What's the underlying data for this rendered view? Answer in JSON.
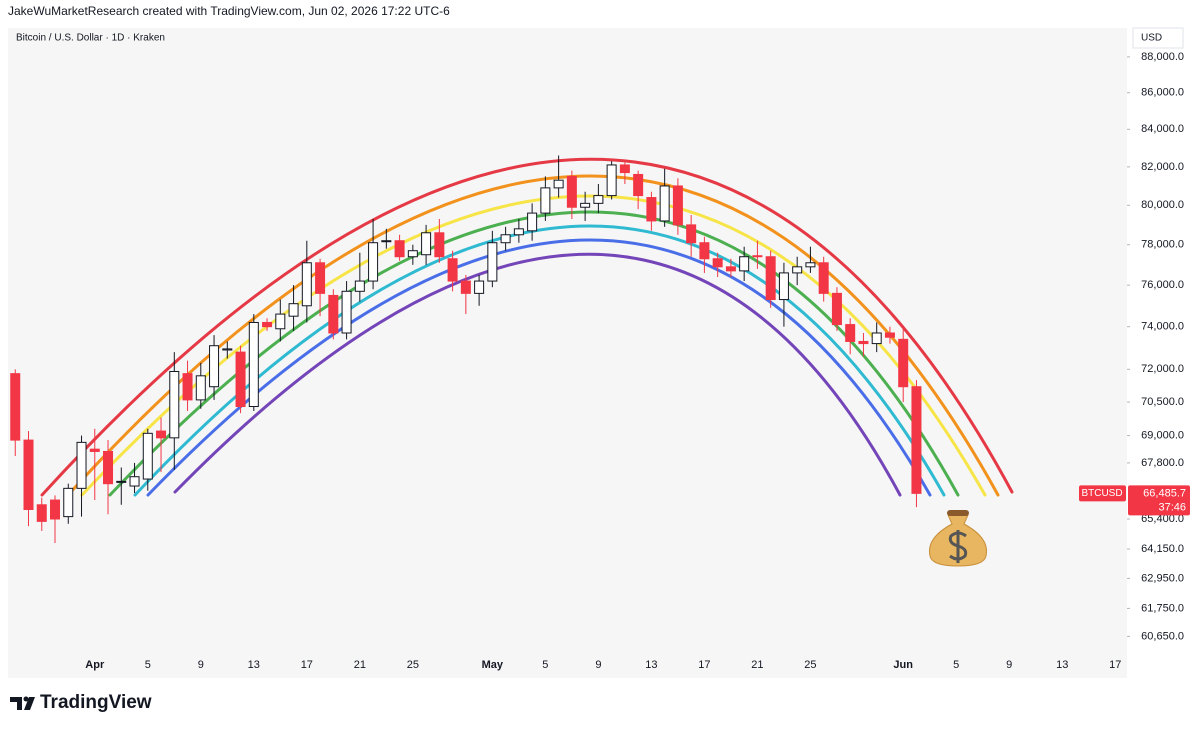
{
  "header": "JakeWuMarketResearch created with TradingView.com, Jun 02, 2026 17:22 UTC-6",
  "brand": "TradingView",
  "chart_data": {
    "type": "candlestick",
    "title": "Bitcoin / U.S. Dollar · 1D · Kraken",
    "currency": "USD",
    "symbol": "BTCUSD",
    "last_price": {
      "value": 66485.7,
      "label": "66,485.7"
    },
    "countdown": "37:46",
    "log_scale": true,
    "grid": false,
    "up_color": "#ffffff",
    "down_color": "#f23645",
    "x": [
      "03-26",
      "03-27",
      "03-28",
      "03-29",
      "03-30",
      "03-31",
      "04-01",
      "04-02",
      "04-03",
      "04-04",
      "04-05",
      "04-06",
      "04-07",
      "04-08",
      "04-09",
      "04-10",
      "04-11",
      "04-12",
      "04-13",
      "04-14",
      "04-15",
      "04-16",
      "04-17",
      "04-18",
      "04-19",
      "04-20",
      "04-21",
      "04-22",
      "04-23",
      "04-24",
      "04-25",
      "04-26",
      "04-27",
      "04-28",
      "04-29",
      "04-30",
      "05-01",
      "05-02",
      "05-03",
      "05-04",
      "05-05",
      "05-06",
      "05-07",
      "05-08",
      "05-09",
      "05-10",
      "05-11",
      "05-12",
      "05-13",
      "05-14",
      "05-15",
      "05-16",
      "05-17",
      "05-18",
      "05-19",
      "05-20",
      "05-21",
      "05-22",
      "05-23",
      "05-24",
      "05-25",
      "05-26",
      "05-27",
      "05-28",
      "05-29",
      "05-30",
      "05-31",
      "06-01",
      "06-02"
    ],
    "open": [
      71800,
      68800,
      66000,
      66200,
      65500,
      66700,
      68400,
      68300,
      67000,
      66800,
      67100,
      69200,
      68900,
      71800,
      70600,
      71200,
      72900,
      72800,
      70300,
      74200,
      73900,
      74500,
      75000,
      77100,
      75500,
      73700,
      75700,
      76200,
      78200,
      78200,
      77400,
      77500,
      78600,
      77300,
      76200,
      75600,
      76200,
      78100,
      78500,
      78700,
      79600,
      80900,
      81500,
      79900,
      80100,
      80500,
      82100,
      81600,
      80400,
      79200,
      81000,
      79000,
      78100,
      77300,
      76900,
      76700,
      77450,
      77400,
      75300,
      76600,
      76900,
      77100,
      75600,
      74100,
      73300,
      73200,
      73700,
      73400,
      71200
    ],
    "high": [
      72000,
      69200,
      66300,
      66400,
      66900,
      69000,
      69300,
      68800,
      67600,
      67800,
      69300,
      69800,
      72800,
      72400,
      72300,
      73600,
      73300,
      73100,
      74600,
      74400,
      75300,
      76000,
      78200,
      77300,
      75800,
      76200,
      77600,
      79300,
      78800,
      78500,
      78000,
      79000,
      79300,
      77700,
      76500,
      76500,
      78700,
      78900,
      79300,
      80100,
      81500,
      82600,
      81800,
      80700,
      81100,
      82300,
      82300,
      81800,
      80700,
      81900,
      81400,
      79500,
      78400,
      77600,
      77300,
      77900,
      78200,
      77700,
      77100,
      77400,
      77900,
      77400,
      75900,
      74400,
      73700,
      74200,
      74000,
      73900,
      71500
    ],
    "low": [
      68100,
      65100,
      64900,
      64400,
      65200,
      65500,
      66200,
      65600,
      66000,
      66500,
      66600,
      67400,
      67500,
      70100,
      70200,
      70600,
      72500,
      70000,
      70100,
      73800,
      73300,
      73800,
      74200,
      74500,
      73400,
      73400,
      75200,
      75800,
      77800,
      77200,
      77000,
      77000,
      77100,
      75700,
      74600,
      75000,
      75900,
      77700,
      78100,
      78200,
      79200,
      80400,
      79300,
      79200,
      79600,
      80300,
      81100,
      79800,
      78700,
      78900,
      78500,
      77400,
      76600,
      76400,
      76400,
      76200,
      76800,
      74900,
      74000,
      76000,
      76600,
      75200,
      73800,
      72700,
      72600,
      72800,
      73200,
      70500,
      65900
    ],
    "close": [
      68800,
      65800,
      65300,
      65400,
      66700,
      68700,
      68300,
      66900,
      67000,
      67200,
      69100,
      68900,
      71900,
      70600,
      71700,
      73100,
      72950,
      70300,
      74200,
      74000,
      74600,
      75100,
      77100,
      75600,
      73700,
      75700,
      76200,
      78100,
      78200,
      77400,
      77700,
      78600,
      77400,
      76200,
      75600,
      76200,
      78100,
      78500,
      78800,
      79600,
      80900,
      81300,
      79900,
      80100,
      80500,
      82100,
      81700,
      80500,
      79200,
      81000,
      79000,
      78100,
      77300,
      76900,
      76700,
      77400,
      77400,
      75300,
      76600,
      76900,
      77100,
      75600,
      74100,
      73300,
      73200,
      73700,
      73500,
      71200,
      66485.7
    ],
    "xlim": [
      "03-25",
      "06-18"
    ],
    "xticks": [
      {
        "value": "04-01",
        "label": "Apr"
      },
      {
        "value": "04-05",
        "label": "5"
      },
      {
        "value": "04-09",
        "label": "9"
      },
      {
        "value": "04-13",
        "label": "13"
      },
      {
        "value": "04-17",
        "label": "17"
      },
      {
        "value": "04-21",
        "label": "21"
      },
      {
        "value": "04-25",
        "label": "25"
      },
      {
        "value": "05-01",
        "label": "May"
      },
      {
        "value": "05-05",
        "label": "5"
      },
      {
        "value": "05-09",
        "label": "9"
      },
      {
        "value": "05-13",
        "label": "13"
      },
      {
        "value": "05-17",
        "label": "17"
      },
      {
        "value": "05-21",
        "label": "21"
      },
      {
        "value": "05-25",
        "label": "25"
      },
      {
        "value": "06-01",
        "label": "Jun"
      },
      {
        "value": "06-05",
        "label": "5"
      },
      {
        "value": "06-09",
        "label": "9"
      },
      {
        "value": "06-13",
        "label": "13"
      },
      {
        "value": "06-17",
        "label": "17"
      }
    ],
    "ylim": [
      59050,
      89650
    ],
    "yticks": [
      {
        "value": 88000,
        "label": "88,000.0"
      },
      {
        "value": 86000,
        "label": "86,000.0"
      },
      {
        "value": 84000,
        "label": "84,000.0"
      },
      {
        "value": 82000,
        "label": "82,000.0"
      },
      {
        "value": 80000,
        "label": "80,000.0"
      },
      {
        "value": 78000,
        "label": "78,000.0"
      },
      {
        "value": 76000,
        "label": "76,000.0"
      },
      {
        "value": 74000,
        "label": "74,000.0"
      },
      {
        "value": 72000,
        "label": "72,000.0"
      },
      {
        "value": 70500,
        "label": "70,500.0"
      },
      {
        "value": 69000,
        "label": "69,000.0"
      },
      {
        "value": 67800,
        "label": "67,800.0"
      },
      {
        "value": 65400,
        "label": "65,400.0"
      },
      {
        "value": 64150,
        "label": "64,150.0"
      },
      {
        "value": 62950,
        "label": "62,950.0"
      },
      {
        "value": 61750,
        "label": "61,750.0"
      },
      {
        "value": 60650,
        "label": "60,650.0"
      }
    ]
  }
}
